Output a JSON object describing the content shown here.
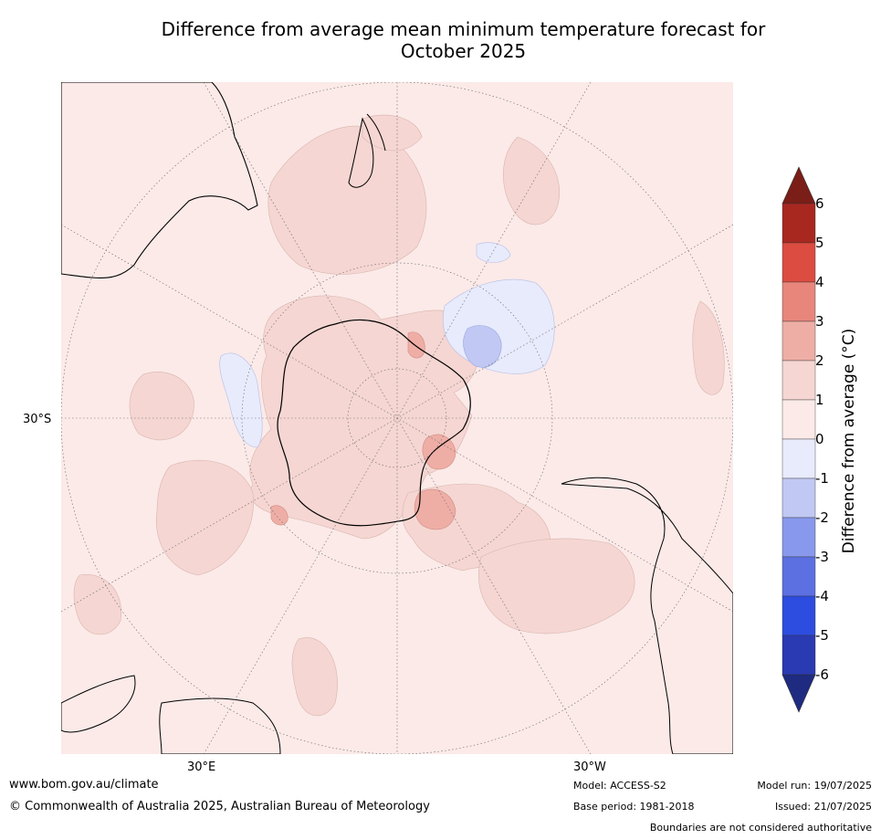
{
  "title_line1": "Difference from average mean minimum temperature forecast for",
  "title_line2": "October 2025",
  "map": {
    "lat_label_left": "30°S",
    "lon_label_bottom_left": "30°E",
    "lon_label_bottom_right": "30°W"
  },
  "colorbar": {
    "title": "Difference from average (°C)",
    "ticks": [
      "6",
      "5",
      "4",
      "3",
      "2",
      "1",
      "0",
      "-1",
      "-2",
      "-3",
      "-4",
      "-5",
      "-6"
    ],
    "colors": {
      "above6": "#7a1e17",
      "5to6": "#a82820",
      "4to5": "#dc4c40",
      "3to4": "#e8867c",
      "2to3": "#eeaea6",
      "1to2": "#f5d6d2",
      "0to1": "#fbeae8",
      "m1to0": "#e8ebfb",
      "m2tom1": "#c0c8f3",
      "m3tom2": "#8898ec",
      "m4tom3": "#5c70e2",
      "m5tom4": "#2d4de0",
      "m6tom5": "#2a3ab3",
      "belowm6": "#1e2b80"
    }
  },
  "footer": {
    "website": "www.bom.gov.au/climate",
    "copyright": "© Commonwealth of Australia 2025, Australian Bureau of Meteorology",
    "model": "Model: ACCESS-S2",
    "base_period": "Base period: 1981-2018",
    "model_run": "Model run: 19/07/2025",
    "issued": "Issued: 21/07/2025",
    "disclaimer": "Boundaries are not considered authoritative"
  }
}
